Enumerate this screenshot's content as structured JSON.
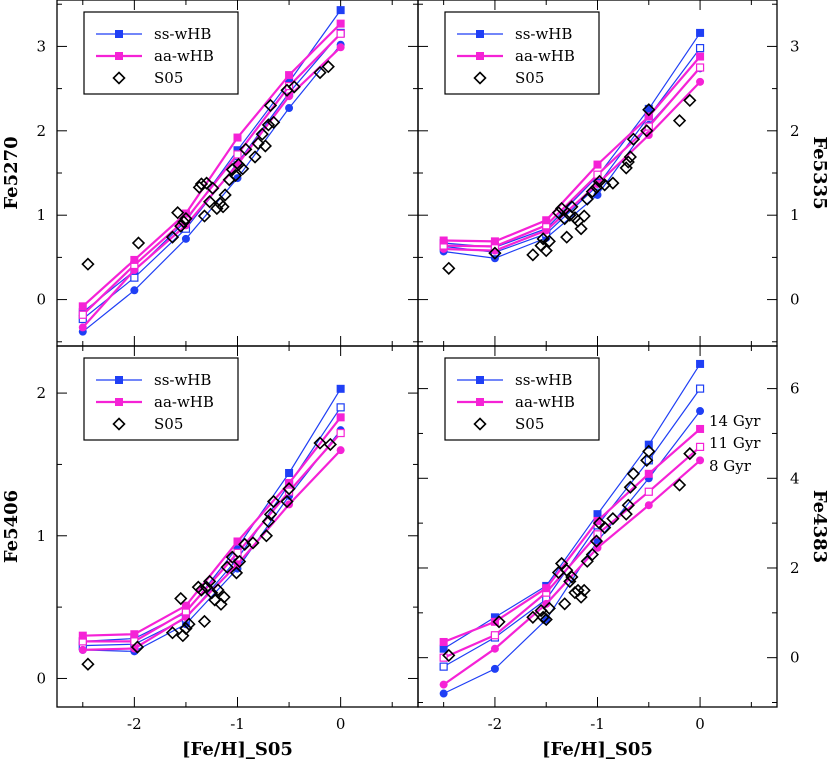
{
  "colors": {
    "ss": "#1f3ff5",
    "aa": "#f522d6",
    "s05": "#000000",
    "frame": "#000000"
  },
  "age_labels": [
    "14 Gyr",
    "11 Gyr",
    "8 Gyr"
  ],
  "chart_data": [
    {
      "type": "line",
      "panel": "top-left",
      "ylabel": "Fe5270",
      "xlabel": "",
      "xlim": [
        -2.75,
        0.75
      ],
      "ylim": [
        -0.55,
        3.55
      ],
      "xticks": [],
      "yticks": [
        0,
        1,
        2,
        3
      ],
      "ytick_side": "left",
      "ylabel_side": "left",
      "legend": {
        "position": "top-left",
        "entries": [
          "ss-wHB",
          "aa-wHB",
          "S05"
        ]
      },
      "x": [
        -2.5,
        -2.0,
        -1.5,
        -1.0,
        -0.5,
        0.0
      ],
      "series": [
        {
          "name": "ss-wHB",
          "model": "ss",
          "age": "14 Gyr",
          "marker": "circle-filled",
          "values": [
            -0.38,
            0.11,
            0.72,
            1.44,
            2.27,
            3.02
          ]
        },
        {
          "model": "ss",
          "age": "11 Gyr",
          "marker": "square-open",
          "values": [
            -0.23,
            0.26,
            0.84,
            1.62,
            2.45,
            3.16
          ]
        },
        {
          "model": "ss",
          "age": "8 Gyr",
          "marker": "square-filled",
          "values": [
            -0.15,
            0.34,
            0.93,
            1.77,
            2.58,
            3.43
          ]
        },
        {
          "model": "aa",
          "age": "14 Gyr",
          "marker": "circle-filled",
          "values": [
            -0.33,
            0.35,
            0.88,
            1.6,
            2.41,
            2.99
          ]
        },
        {
          "model": "aa",
          "age": "11 Gyr",
          "marker": "square-open",
          "values": [
            -0.18,
            0.41,
            0.95,
            1.72,
            2.53,
            3.15
          ]
        },
        {
          "name": "aa-wHB",
          "model": "aa",
          "age": "8 Gyr",
          "marker": "square-filled",
          "values": [
            -0.08,
            0.47,
            1.02,
            1.92,
            2.66,
            3.27
          ]
        }
      ],
      "s05": [
        [
          -2.45,
          0.42
        ],
        [
          -1.96,
          0.67
        ],
        [
          -1.63,
          0.74
        ],
        [
          -1.58,
          1.03
        ],
        [
          -1.55,
          0.87
        ],
        [
          -1.52,
          0.92
        ],
        [
          -1.5,
          0.96
        ],
        [
          -1.37,
          1.33
        ],
        [
          -1.35,
          1.37
        ],
        [
          -1.32,
          0.99
        ],
        [
          -1.3,
          1.38
        ],
        [
          -1.27,
          1.16
        ],
        [
          -1.24,
          1.32
        ],
        [
          -1.2,
          1.08
        ],
        [
          -1.17,
          1.14
        ],
        [
          -1.14,
          1.1
        ],
        [
          -1.12,
          1.24
        ],
        [
          -1.08,
          1.42
        ],
        [
          -1.05,
          1.54
        ],
        [
          -1.02,
          1.47
        ],
        [
          -0.99,
          1.6
        ],
        [
          -0.95,
          1.55
        ],
        [
          -0.92,
          1.78
        ],
        [
          -0.83,
          1.69
        ],
        [
          -0.8,
          1.85
        ],
        [
          -0.76,
          1.96
        ],
        [
          -0.73,
          1.82
        ],
        [
          -0.7,
          2.07
        ],
        [
          -0.68,
          2.3
        ],
        [
          -0.65,
          2.1
        ],
        [
          -0.52,
          2.48
        ],
        [
          -0.45,
          2.52
        ],
        [
          -0.2,
          2.69
        ],
        [
          -0.12,
          2.76
        ]
      ]
    },
    {
      "type": "line",
      "panel": "top-right",
      "ylabel": "Fe5335",
      "xlabel": "",
      "xlim": [
        -2.75,
        0.75
      ],
      "ylim": [
        -0.55,
        3.55
      ],
      "xticks": [],
      "yticks": [
        0,
        1,
        2,
        3
      ],
      "ytick_side": "right",
      "ylabel_side": "right",
      "legend": {
        "position": "top-left",
        "entries": [
          "ss-wHB",
          "aa-wHB",
          "S05"
        ]
      },
      "x": [
        -2.5,
        -2.0,
        -1.5,
        -1.0,
        -0.5,
        0.0
      ],
      "series": [
        {
          "name": "ss-wHB",
          "model": "ss",
          "age": "14 Gyr",
          "marker": "circle-filled",
          "values": [
            0.57,
            0.49,
            0.73,
            1.24,
            2.07,
            2.74
          ]
        },
        {
          "model": "ss",
          "age": "11 Gyr",
          "marker": "square-open",
          "values": [
            0.63,
            0.56,
            0.78,
            1.35,
            2.17,
            2.98
          ]
        },
        {
          "model": "ss",
          "age": "8 Gyr",
          "marker": "square-filled",
          "values": [
            0.67,
            0.62,
            0.84,
            1.46,
            2.26,
            3.16
          ]
        },
        {
          "model": "aa",
          "age": "14 Gyr",
          "marker": "circle-filled",
          "values": [
            0.6,
            0.58,
            0.82,
            1.37,
            1.95,
            2.58
          ]
        },
        {
          "model": "aa",
          "age": "11 Gyr",
          "marker": "square-open",
          "values": [
            0.64,
            0.63,
            0.88,
            1.48,
            2.05,
            2.75
          ]
        },
        {
          "name": "aa-wHB",
          "model": "aa",
          "age": "8 Gyr",
          "marker": "square-filled",
          "values": [
            0.7,
            0.69,
            0.94,
            1.6,
            2.17,
            2.88
          ]
        }
      ],
      "s05": [
        [
          -2.45,
          0.37
        ],
        [
          -2.0,
          0.55
        ],
        [
          -1.63,
          0.53
        ],
        [
          -1.55,
          0.64
        ],
        [
          -1.53,
          0.72
        ],
        [
          -1.5,
          0.58
        ],
        [
          -1.47,
          0.69
        ],
        [
          -1.38,
          1.03
        ],
        [
          -1.35,
          1.08
        ],
        [
          -1.32,
          0.96
        ],
        [
          -1.3,
          0.74
        ],
        [
          -1.27,
          1.0
        ],
        [
          -1.25,
          1.1
        ],
        [
          -1.22,
          0.97
        ],
        [
          -1.19,
          0.93
        ],
        [
          -1.16,
          0.84
        ],
        [
          -1.13,
          0.99
        ],
        [
          -1.1,
          1.19
        ],
        [
          -1.05,
          1.28
        ],
        [
          -1.01,
          1.33
        ],
        [
          -0.98,
          1.4
        ],
        [
          -0.93,
          1.36
        ],
        [
          -0.85,
          1.38
        ],
        [
          -0.72,
          1.56
        ],
        [
          -0.7,
          1.63
        ],
        [
          -0.68,
          1.69
        ],
        [
          -0.65,
          1.9
        ],
        [
          -0.52,
          2.0
        ],
        [
          -0.5,
          2.25
        ],
        [
          -0.2,
          2.12
        ],
        [
          -0.1,
          2.36
        ]
      ]
    },
    {
      "type": "line",
      "panel": "bottom-left",
      "ylabel": "Fe5406",
      "xlabel": "[Fe/H]_S05",
      "xlim": [
        -2.75,
        0.75
      ],
      "ylim": [
        -0.2,
        2.33
      ],
      "xticks": [
        -2,
        -1,
        0
      ],
      "yticks": [
        0,
        1,
        2
      ],
      "ytick_side": "left",
      "ylabel_side": "left",
      "legend": {
        "position": "top-left",
        "entries": [
          "ss-wHB",
          "aa-wHB",
          "S05"
        ]
      },
      "x": [
        -2.5,
        -2.0,
        -1.5,
        -1.0,
        -0.5,
        0.0
      ],
      "series": [
        {
          "name": "ss-wHB",
          "model": "ss",
          "age": "14 Gyr",
          "marker": "circle-filled",
          "values": [
            0.2,
            0.19,
            0.38,
            0.77,
            1.28,
            1.74
          ]
        },
        {
          "model": "ss",
          "age": "11 Gyr",
          "marker": "square-open",
          "values": [
            0.23,
            0.24,
            0.42,
            0.84,
            1.36,
            1.9
          ]
        },
        {
          "model": "ss",
          "age": "8 Gyr",
          "marker": "square-filled",
          "values": [
            0.26,
            0.28,
            0.46,
            0.92,
            1.44,
            2.03
          ]
        },
        {
          "model": "aa",
          "age": "14 Gyr",
          "marker": "circle-filled",
          "values": [
            0.2,
            0.21,
            0.43,
            0.8,
            1.22,
            1.6
          ]
        },
        {
          "model": "aa",
          "age": "11 Gyr",
          "marker": "square-open",
          "values": [
            0.26,
            0.26,
            0.47,
            0.88,
            1.31,
            1.72
          ]
        },
        {
          "name": "aa-wHB",
          "model": "aa",
          "age": "8 Gyr",
          "marker": "square-filled",
          "values": [
            0.3,
            0.31,
            0.51,
            0.96,
            1.37,
            1.83
          ]
        }
      ],
      "s05": [
        [
          -2.45,
          0.1
        ],
        [
          -1.97,
          0.22
        ],
        [
          -1.63,
          0.32
        ],
        [
          -1.55,
          0.56
        ],
        [
          -1.53,
          0.3
        ],
        [
          -1.5,
          0.35
        ],
        [
          -1.47,
          0.38
        ],
        [
          -1.38,
          0.64
        ],
        [
          -1.35,
          0.62
        ],
        [
          -1.32,
          0.4
        ],
        [
          -1.3,
          0.64
        ],
        [
          -1.27,
          0.68
        ],
        [
          -1.25,
          0.6
        ],
        [
          -1.22,
          0.55
        ],
        [
          -1.19,
          0.62
        ],
        [
          -1.16,
          0.52
        ],
        [
          -1.13,
          0.57
        ],
        [
          -1.1,
          0.78
        ],
        [
          -1.05,
          0.85
        ],
        [
          -1.01,
          0.74
        ],
        [
          -0.98,
          0.82
        ],
        [
          -0.93,
          0.94
        ],
        [
          -0.85,
          0.95
        ],
        [
          -0.72,
          1.0
        ],
        [
          -0.7,
          1.1
        ],
        [
          -0.68,
          1.15
        ],
        [
          -0.65,
          1.24
        ],
        [
          -0.52,
          1.24
        ],
        [
          -0.5,
          1.33
        ],
        [
          -0.2,
          1.65
        ],
        [
          -0.1,
          1.64
        ]
      ]
    },
    {
      "type": "line",
      "panel": "bottom-right",
      "ylabel": "Fe4383",
      "xlabel": "[Fe/H]_S05",
      "xlim": [
        -2.75,
        0.75
      ],
      "ylim": [
        -1.1,
        6.95
      ],
      "xticks": [
        -2,
        -1,
        0
      ],
      "yticks": [
        0,
        2,
        4,
        6
      ],
      "ytick_side": "right",
      "ylabel_side": "right",
      "legend": {
        "position": "top-left",
        "entries": [
          "ss-wHB",
          "aa-wHB",
          "S05"
        ]
      },
      "age_annotations": true,
      "x": [
        -2.5,
        -2.0,
        -1.5,
        -1.0,
        -0.5,
        0.0
      ],
      "series": [
        {
          "name": "ss-wHB",
          "model": "ss",
          "age": "14 Gyr",
          "marker": "circle-filled",
          "values": [
            -0.8,
            -0.25,
            0.85,
            2.6,
            4.0,
            5.5
          ]
        },
        {
          "model": "ss",
          "age": "11 Gyr",
          "marker": "square-open",
          "values": [
            -0.2,
            0.45,
            1.3,
            2.95,
            4.4,
            6.0
          ]
        },
        {
          "model": "ss",
          "age": "8 Gyr",
          "marker": "square-filled",
          "values": [
            0.2,
            0.9,
            1.6,
            3.2,
            4.75,
            6.55
          ]
        },
        {
          "model": "aa",
          "age": "14 Gyr",
          "marker": "circle-filled",
          "values": [
            -0.6,
            0.2,
            1.2,
            2.45,
            3.4,
            4.4
          ]
        },
        {
          "model": "aa",
          "age": "11 Gyr",
          "marker": "square-open",
          "values": [
            0.0,
            0.5,
            1.45,
            2.75,
            3.7,
            4.7
          ]
        },
        {
          "name": "aa-wHB",
          "model": "aa",
          "age": "8 Gyr",
          "marker": "square-filled",
          "values": [
            0.35,
            0.8,
            1.55,
            3.05,
            4.1,
            5.1
          ]
        }
      ],
      "s05": [
        [
          -2.45,
          0.05
        ],
        [
          -1.96,
          0.8
        ],
        [
          -1.63,
          0.9
        ],
        [
          -1.55,
          1.05
        ],
        [
          -1.53,
          0.9
        ],
        [
          -1.5,
          0.85
        ],
        [
          -1.47,
          1.1
        ],
        [
          -1.38,
          1.9
        ],
        [
          -1.35,
          2.1
        ],
        [
          -1.32,
          1.2
        ],
        [
          -1.3,
          1.95
        ],
        [
          -1.27,
          1.7
        ],
        [
          -1.25,
          1.8
        ],
        [
          -1.22,
          1.45
        ],
        [
          -1.19,
          1.5
        ],
        [
          -1.16,
          1.35
        ],
        [
          -1.13,
          1.5
        ],
        [
          -1.1,
          2.15
        ],
        [
          -1.05,
          2.3
        ],
        [
          -1.01,
          2.6
        ],
        [
          -0.98,
          3.0
        ],
        [
          -0.93,
          2.9
        ],
        [
          -0.85,
          3.1
        ],
        [
          -0.72,
          3.2
        ],
        [
          -0.7,
          3.4
        ],
        [
          -0.68,
          3.8
        ],
        [
          -0.65,
          4.1
        ],
        [
          -0.52,
          4.4
        ],
        [
          -0.5,
          4.6
        ],
        [
          -0.2,
          3.85
        ],
        [
          -0.1,
          4.55
        ]
      ]
    }
  ]
}
